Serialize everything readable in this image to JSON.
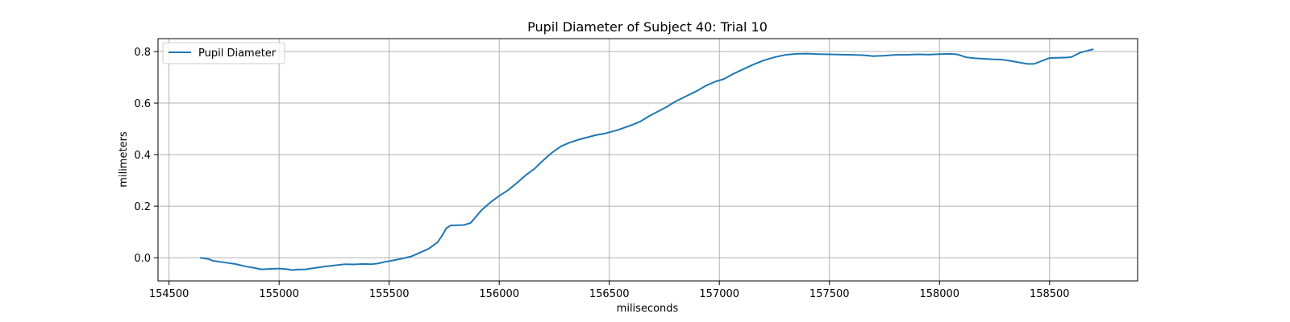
{
  "chart_data": {
    "type": "line",
    "title": "Pupil Diameter of Subject 40: Trial 10",
    "xlabel": "miliseconds",
    "ylabel": "milimeters",
    "xlim": [
      154450,
      158900
    ],
    "ylim": [
      -0.09,
      0.85
    ],
    "xticks": [
      154500,
      155000,
      155500,
      156000,
      156500,
      157000,
      157500,
      158000,
      158500
    ],
    "yticks": [
      0.0,
      0.2,
      0.4,
      0.6,
      0.8
    ],
    "xtick_labels": [
      "154500",
      "155000",
      "155500",
      "156000",
      "156500",
      "157000",
      "157500",
      "158000",
      "158500"
    ],
    "ytick_labels": [
      "0.0",
      "0.2",
      "0.4",
      "0.6",
      "0.8"
    ],
    "grid": true,
    "legend": {
      "position": "top-left",
      "entries": [
        "Pupil Diameter"
      ]
    },
    "series": [
      {
        "name": "Pupil Diameter",
        "color": "#1f77b4",
        "x": [
          154640,
          154680,
          154700,
          154750,
          154800,
          154850,
          154880,
          154920,
          154960,
          155000,
          155030,
          155060,
          155080,
          155120,
          155160,
          155200,
          155250,
          155300,
          155340,
          155380,
          155420,
          155450,
          155480,
          155520,
          155560,
          155600,
          155640,
          155680,
          155720,
          155740,
          155760,
          155780,
          155800,
          155840,
          155870,
          155890,
          155920,
          155960,
          156000,
          156040,
          156080,
          156120,
          156160,
          156200,
          156240,
          156280,
          156320,
          156360,
          156400,
          156440,
          156480,
          156540,
          156600,
          156640,
          156680,
          156720,
          156760,
          156800,
          156850,
          156900,
          156940,
          156980,
          157020,
          157060,
          157100,
          157150,
          157200,
          157250,
          157300,
          157350,
          157400,
          157450,
          157500,
          157550,
          157600,
          157650,
          157700,
          157750,
          157800,
          157850,
          157900,
          157950,
          158000,
          158050,
          158080,
          158120,
          158160,
          158200,
          158240,
          158280,
          158320,
          158360,
          158400,
          158430,
          158460,
          158500,
          158540,
          158580,
          158600,
          158640,
          158680,
          158700
        ],
        "y": [
          0.0,
          -0.005,
          -0.012,
          -0.018,
          -0.024,
          -0.034,
          -0.038,
          -0.045,
          -0.043,
          -0.042,
          -0.044,
          -0.048,
          -0.046,
          -0.045,
          -0.04,
          -0.035,
          -0.03,
          -0.025,
          -0.026,
          -0.024,
          -0.025,
          -0.022,
          -0.016,
          -0.01,
          -0.003,
          0.005,
          0.02,
          0.035,
          0.06,
          0.085,
          0.115,
          0.125,
          0.126,
          0.127,
          0.135,
          0.155,
          0.185,
          0.215,
          0.24,
          0.262,
          0.29,
          0.32,
          0.345,
          0.378,
          0.408,
          0.432,
          0.447,
          0.458,
          0.467,
          0.476,
          0.482,
          0.496,
          0.514,
          0.528,
          0.549,
          0.567,
          0.585,
          0.606,
          0.627,
          0.648,
          0.668,
          0.683,
          0.693,
          0.712,
          0.728,
          0.748,
          0.765,
          0.778,
          0.787,
          0.791,
          0.792,
          0.79,
          0.789,
          0.788,
          0.787,
          0.786,
          0.782,
          0.784,
          0.787,
          0.787,
          0.789,
          0.788,
          0.79,
          0.791,
          0.789,
          0.778,
          0.774,
          0.772,
          0.77,
          0.769,
          0.764,
          0.758,
          0.752,
          0.752,
          0.762,
          0.775,
          0.776,
          0.777,
          0.779,
          0.796,
          0.805,
          0.809
        ]
      }
    ]
  }
}
